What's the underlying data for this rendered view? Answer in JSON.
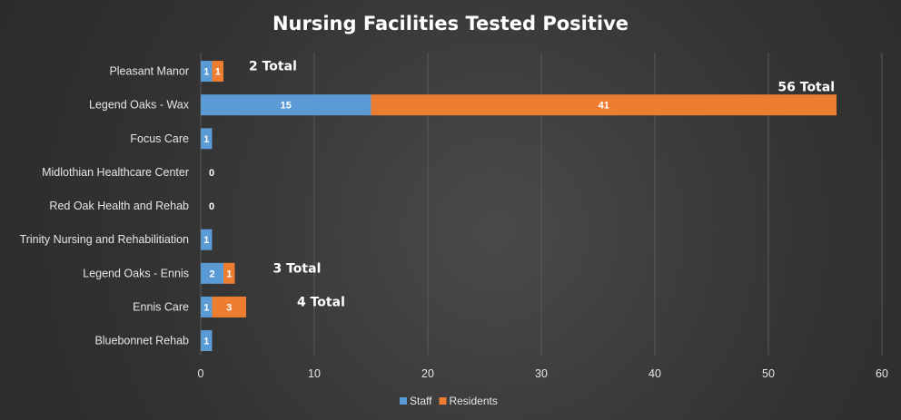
{
  "chart_data": {
    "type": "bar",
    "orientation": "horizontal",
    "stacked": true,
    "title": "Nursing Facilities Tested Positive",
    "categories": [
      "Pleasant Manor",
      "Legend Oaks - Wax",
      "Focus Care",
      "Midlothian Healthcare Center",
      "Red Oak Health and Rehab",
      "Trinity Nursing and Rehabilitiation",
      "Legend Oaks - Ennis",
      "Ennis Care",
      "Bluebonnet Rehab"
    ],
    "series": [
      {
        "name": "Staff",
        "color": "#5b9bd5",
        "values": [
          1,
          15,
          1,
          0,
          0,
          1,
          2,
          1,
          1
        ]
      },
      {
        "name": "Residents",
        "color": "#ed7d31",
        "values": [
          1,
          41,
          0,
          0,
          0,
          0,
          1,
          3,
          0
        ]
      }
    ],
    "zero_labels": [
      "",
      "",
      "",
      "0",
      "0",
      "",
      "",
      "",
      ""
    ],
    "total_labels": [
      "2 Total",
      "56 Total",
      "",
      "",
      "",
      "",
      "3 Total",
      "4 Total",
      ""
    ],
    "xlim": [
      0,
      60
    ],
    "xticks": [
      "0",
      "10",
      "20",
      "30",
      "40",
      "50",
      "60"
    ],
    "grid": true,
    "legend": "bottom"
  }
}
